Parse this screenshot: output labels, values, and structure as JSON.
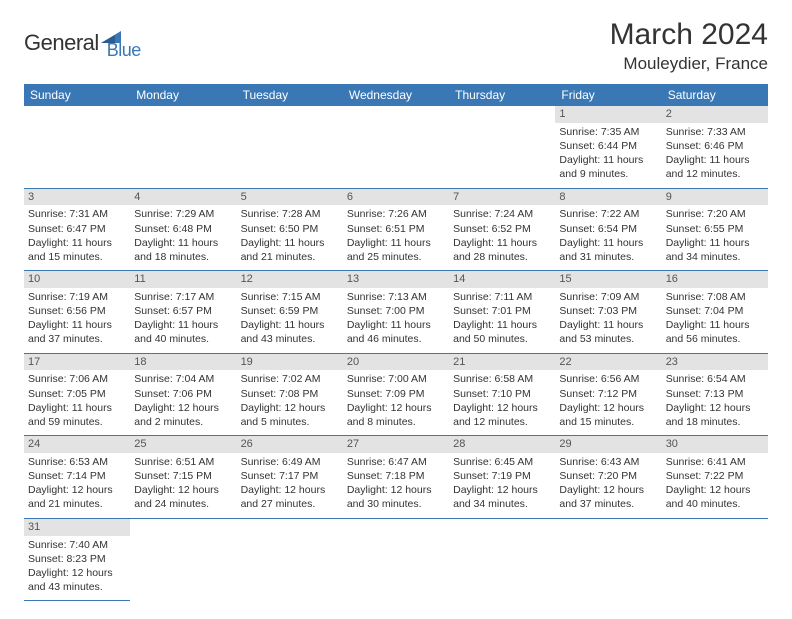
{
  "logo": {
    "general": "General",
    "blue": "Blue"
  },
  "title": "March 2024",
  "location": "Mouleydier, France",
  "colors": {
    "header_bg": "#3a78b5",
    "daynum_bg": "#e3e3e3",
    "border": "#3a78b5",
    "text": "#333333"
  },
  "day_headers": [
    "Sunday",
    "Monday",
    "Tuesday",
    "Wednesday",
    "Thursday",
    "Friday",
    "Saturday"
  ],
  "weeks": [
    [
      null,
      null,
      null,
      null,
      null,
      {
        "n": "1",
        "sr": "Sunrise: 7:35 AM",
        "ss": "Sunset: 6:44 PM",
        "d1": "Daylight: 11 hours",
        "d2": "and 9 minutes."
      },
      {
        "n": "2",
        "sr": "Sunrise: 7:33 AM",
        "ss": "Sunset: 6:46 PM",
        "d1": "Daylight: 11 hours",
        "d2": "and 12 minutes."
      }
    ],
    [
      {
        "n": "3",
        "sr": "Sunrise: 7:31 AM",
        "ss": "Sunset: 6:47 PM",
        "d1": "Daylight: 11 hours",
        "d2": "and 15 minutes."
      },
      {
        "n": "4",
        "sr": "Sunrise: 7:29 AM",
        "ss": "Sunset: 6:48 PM",
        "d1": "Daylight: 11 hours",
        "d2": "and 18 minutes."
      },
      {
        "n": "5",
        "sr": "Sunrise: 7:28 AM",
        "ss": "Sunset: 6:50 PM",
        "d1": "Daylight: 11 hours",
        "d2": "and 21 minutes."
      },
      {
        "n": "6",
        "sr": "Sunrise: 7:26 AM",
        "ss": "Sunset: 6:51 PM",
        "d1": "Daylight: 11 hours",
        "d2": "and 25 minutes."
      },
      {
        "n": "7",
        "sr": "Sunrise: 7:24 AM",
        "ss": "Sunset: 6:52 PM",
        "d1": "Daylight: 11 hours",
        "d2": "and 28 minutes."
      },
      {
        "n": "8",
        "sr": "Sunrise: 7:22 AM",
        "ss": "Sunset: 6:54 PM",
        "d1": "Daylight: 11 hours",
        "d2": "and 31 minutes."
      },
      {
        "n": "9",
        "sr": "Sunrise: 7:20 AM",
        "ss": "Sunset: 6:55 PM",
        "d1": "Daylight: 11 hours",
        "d2": "and 34 minutes."
      }
    ],
    [
      {
        "n": "10",
        "sr": "Sunrise: 7:19 AM",
        "ss": "Sunset: 6:56 PM",
        "d1": "Daylight: 11 hours",
        "d2": "and 37 minutes."
      },
      {
        "n": "11",
        "sr": "Sunrise: 7:17 AM",
        "ss": "Sunset: 6:57 PM",
        "d1": "Daylight: 11 hours",
        "d2": "and 40 minutes."
      },
      {
        "n": "12",
        "sr": "Sunrise: 7:15 AM",
        "ss": "Sunset: 6:59 PM",
        "d1": "Daylight: 11 hours",
        "d2": "and 43 minutes."
      },
      {
        "n": "13",
        "sr": "Sunrise: 7:13 AM",
        "ss": "Sunset: 7:00 PM",
        "d1": "Daylight: 11 hours",
        "d2": "and 46 minutes."
      },
      {
        "n": "14",
        "sr": "Sunrise: 7:11 AM",
        "ss": "Sunset: 7:01 PM",
        "d1": "Daylight: 11 hours",
        "d2": "and 50 minutes."
      },
      {
        "n": "15",
        "sr": "Sunrise: 7:09 AM",
        "ss": "Sunset: 7:03 PM",
        "d1": "Daylight: 11 hours",
        "d2": "and 53 minutes."
      },
      {
        "n": "16",
        "sr": "Sunrise: 7:08 AM",
        "ss": "Sunset: 7:04 PM",
        "d1": "Daylight: 11 hours",
        "d2": "and 56 minutes."
      }
    ],
    [
      {
        "n": "17",
        "sr": "Sunrise: 7:06 AM",
        "ss": "Sunset: 7:05 PM",
        "d1": "Daylight: 11 hours",
        "d2": "and 59 minutes."
      },
      {
        "n": "18",
        "sr": "Sunrise: 7:04 AM",
        "ss": "Sunset: 7:06 PM",
        "d1": "Daylight: 12 hours",
        "d2": "and 2 minutes."
      },
      {
        "n": "19",
        "sr": "Sunrise: 7:02 AM",
        "ss": "Sunset: 7:08 PM",
        "d1": "Daylight: 12 hours",
        "d2": "and 5 minutes."
      },
      {
        "n": "20",
        "sr": "Sunrise: 7:00 AM",
        "ss": "Sunset: 7:09 PM",
        "d1": "Daylight: 12 hours",
        "d2": "and 8 minutes."
      },
      {
        "n": "21",
        "sr": "Sunrise: 6:58 AM",
        "ss": "Sunset: 7:10 PM",
        "d1": "Daylight: 12 hours",
        "d2": "and 12 minutes."
      },
      {
        "n": "22",
        "sr": "Sunrise: 6:56 AM",
        "ss": "Sunset: 7:12 PM",
        "d1": "Daylight: 12 hours",
        "d2": "and 15 minutes."
      },
      {
        "n": "23",
        "sr": "Sunrise: 6:54 AM",
        "ss": "Sunset: 7:13 PM",
        "d1": "Daylight: 12 hours",
        "d2": "and 18 minutes."
      }
    ],
    [
      {
        "n": "24",
        "sr": "Sunrise: 6:53 AM",
        "ss": "Sunset: 7:14 PM",
        "d1": "Daylight: 12 hours",
        "d2": "and 21 minutes."
      },
      {
        "n": "25",
        "sr": "Sunrise: 6:51 AM",
        "ss": "Sunset: 7:15 PM",
        "d1": "Daylight: 12 hours",
        "d2": "and 24 minutes."
      },
      {
        "n": "26",
        "sr": "Sunrise: 6:49 AM",
        "ss": "Sunset: 7:17 PM",
        "d1": "Daylight: 12 hours",
        "d2": "and 27 minutes."
      },
      {
        "n": "27",
        "sr": "Sunrise: 6:47 AM",
        "ss": "Sunset: 7:18 PM",
        "d1": "Daylight: 12 hours",
        "d2": "and 30 minutes."
      },
      {
        "n": "28",
        "sr": "Sunrise: 6:45 AM",
        "ss": "Sunset: 7:19 PM",
        "d1": "Daylight: 12 hours",
        "d2": "and 34 minutes."
      },
      {
        "n": "29",
        "sr": "Sunrise: 6:43 AM",
        "ss": "Sunset: 7:20 PM",
        "d1": "Daylight: 12 hours",
        "d2": "and 37 minutes."
      },
      {
        "n": "30",
        "sr": "Sunrise: 6:41 AM",
        "ss": "Sunset: 7:22 PM",
        "d1": "Daylight: 12 hours",
        "d2": "and 40 minutes."
      }
    ],
    [
      {
        "n": "31",
        "sr": "Sunrise: 7:40 AM",
        "ss": "Sunset: 8:23 PM",
        "d1": "Daylight: 12 hours",
        "d2": "and 43 minutes."
      },
      null,
      null,
      null,
      null,
      null,
      null
    ]
  ]
}
